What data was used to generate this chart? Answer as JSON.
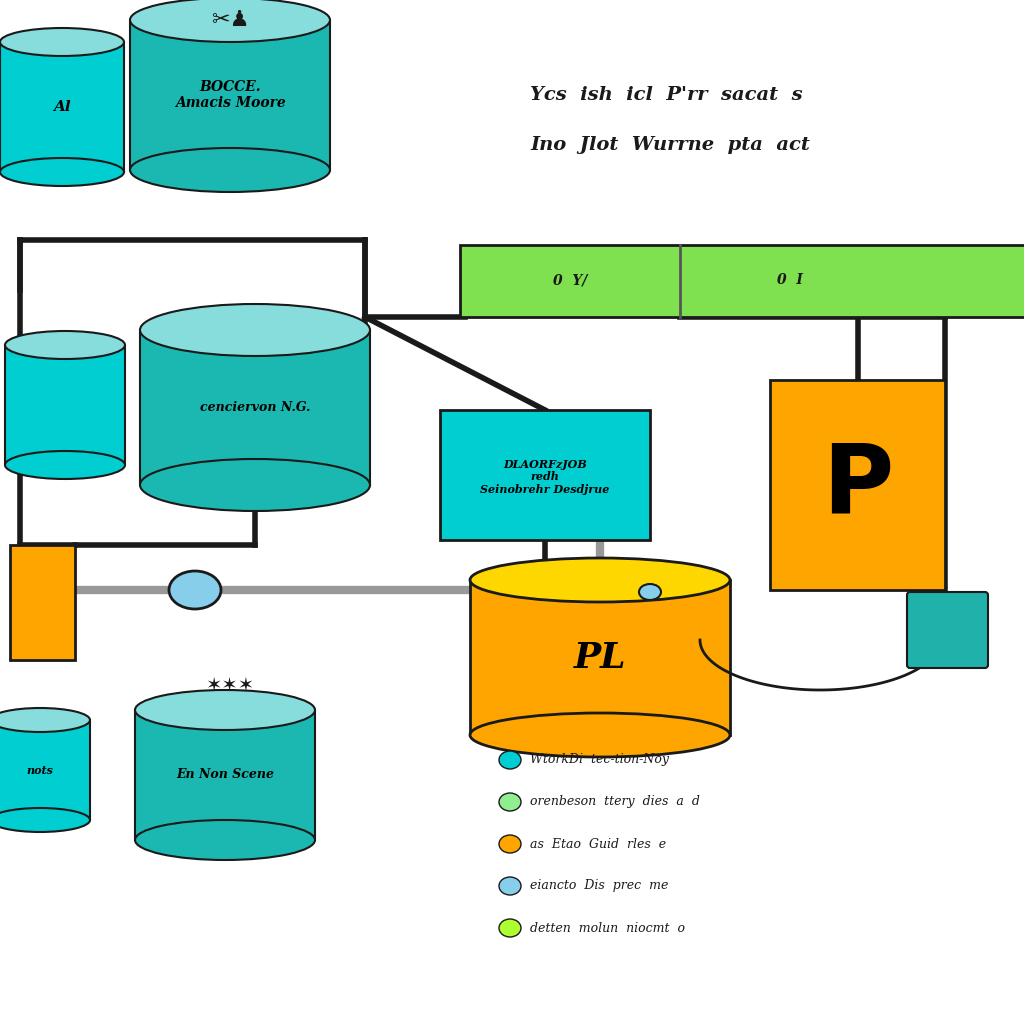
{
  "bg_color": "#ffffff",
  "teal_body": "#00CED1",
  "teal_dark_body": "#1AB8B0",
  "teal_top": "#87DCDC",
  "yellow_color": "#FFA500",
  "yellow_top": "#FFD700",
  "green_bar_color": "#7FE050",
  "cyan_box_color": "#00CED1",
  "orange_box_color": "#FFA500",
  "line_color": "#1a1a1a",
  "gray_pipe": "#999999",
  "pump_color": "#87CEEB",
  "teal_device": "#20B2AA",
  "subtitle_line1": "Ycs  ish  icl  P'rr  sacat  s",
  "subtitle_line2": "Ino  Jlot  Wurrne  pta  act",
  "legend": [
    {
      "color": "#00CED1",
      "text": "WtorkDi  tec-tion-Noy"
    },
    {
      "color": "#90EE90",
      "text": "orenbeson  ttery  dies  a  d"
    },
    {
      "color": "#FFA500",
      "text": "as  Etao  Guid  rles  e"
    },
    {
      "color": "#87CEEB",
      "text": "eiancto  Dis  prec  me"
    },
    {
      "color": "#ADFF2F",
      "text": "detten  molun  niocmt  o"
    }
  ]
}
